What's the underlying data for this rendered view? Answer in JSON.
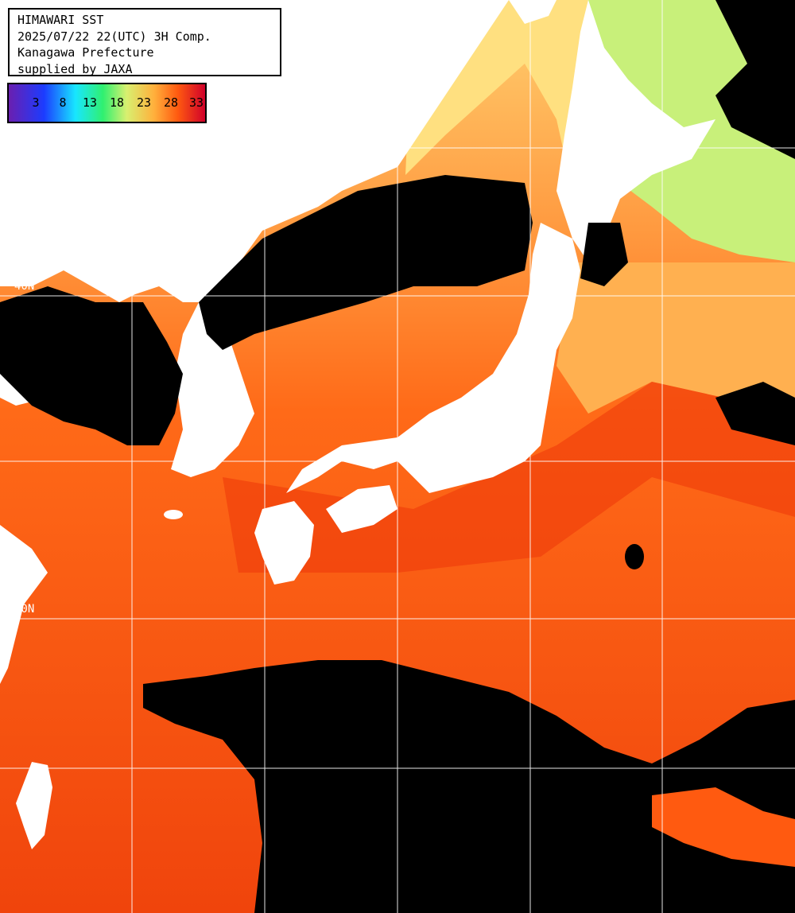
{
  "info": {
    "line1": "HIMAWARI SST",
    "line2": "2025/07/22 22(UTC) 3H Comp.",
    "line3": "Kanagawa Prefecture",
    "line4": "supplied by JAXA"
  },
  "colorbar": {
    "ticks": [
      "3",
      "8",
      "13",
      "18",
      "23",
      "28",
      "33"
    ]
  },
  "grid_labels": {
    "lat_40": "40N",
    "lat_30": "30N"
  },
  "colors": {
    "warm_sea": "#ff5a10",
    "hot_sea": "#e8360c",
    "mild_sea": "#ff9a40",
    "cool_sea": "#ffd070",
    "cold_sea": "#a0f070",
    "land": "#ffffff",
    "cloud": "#000000",
    "grid": "#ffffff"
  }
}
